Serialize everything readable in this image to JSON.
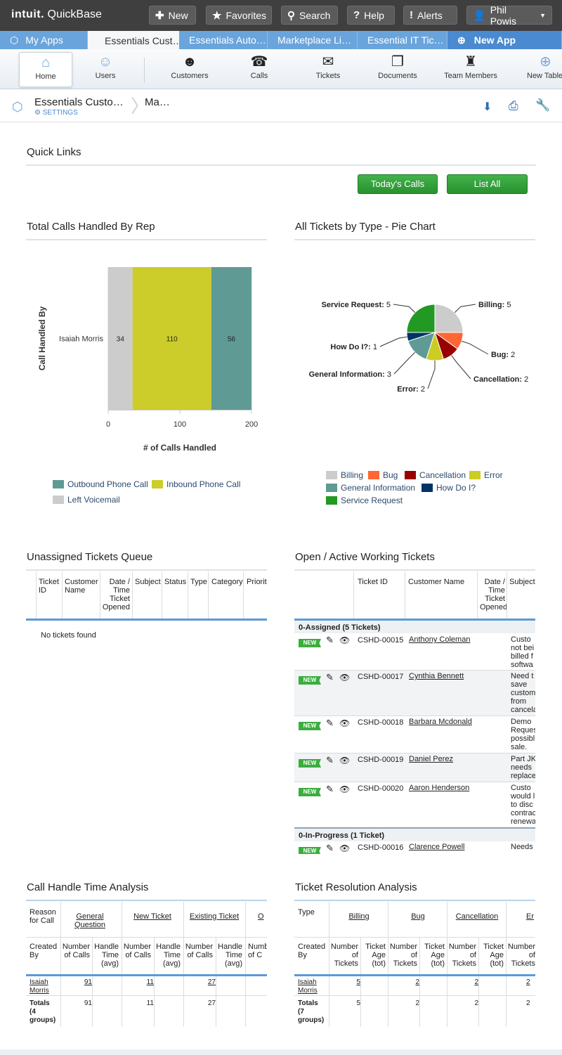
{
  "app": {
    "logo_brand": "intuit.",
    "logo_product": "QuickBase"
  },
  "topbar": {
    "new": "New",
    "favorites": "Favorites",
    "search": "Search",
    "help": "Help",
    "alerts": "Alerts",
    "user": "Phil Powis"
  },
  "tabs": [
    "My Apps",
    "Essentials Cust…",
    "Essentials Auto…",
    "Marketplace Li…",
    "Essential IT Tic…",
    "New App"
  ],
  "nav": [
    {
      "label": "Home",
      "icon": "home-icon"
    },
    {
      "label": "Users",
      "icon": "users-icon"
    },
    {
      "label": "Customers",
      "icon": "customers-icon"
    },
    {
      "label": "Calls",
      "icon": "calls-icon"
    },
    {
      "label": "Tickets",
      "icon": "tickets-icon"
    },
    {
      "label": "Documents",
      "icon": "documents-icon"
    },
    {
      "label": "Team Members",
      "icon": "team-members-icon"
    },
    {
      "label": "New Table",
      "icon": "new-table-icon"
    }
  ],
  "crumb": {
    "app": "Essentials Custo…",
    "settings": "SETTINGS",
    "page": "Ma…"
  },
  "quick_links": {
    "title": "Quick Links",
    "todays_calls": "Today's Calls",
    "list_all": "List All"
  },
  "calls_by_rep": {
    "title": "Total Calls Handled By Rep"
  },
  "tickets_pie": {
    "title": "All Tickets by Type - Pie Chart"
  },
  "unassigned": {
    "title": "Unassigned Tickets Queue",
    "columns": [
      "Ticket ID",
      "Customer Name",
      "Date / Time Ticket Opened",
      "Subject",
      "Status",
      "Type",
      "Category",
      "Priorit"
    ],
    "empty": "No tickets found"
  },
  "open_tickets": {
    "title": "Open / Active Working Tickets",
    "columns": [
      "Ticket ID",
      "Customer Name",
      "Date / Time Ticket Opened",
      "Subject"
    ],
    "groups": [
      {
        "label": "0-Assigned  (5 Tickets)",
        "rows": [
          {
            "badge": "NEW",
            "id": "CSHD-00015",
            "customer": "Anthony Coleman",
            "subject": "Custo not bei billed f softwa"
          },
          {
            "badge": "NEW",
            "id": "CSHD-00017",
            "customer": "Cynthia Bennett",
            "subject": "Need t save custom from cancela"
          },
          {
            "badge": "NEW",
            "id": "CSHD-00018",
            "customer": "Barbara Mcdonald",
            "subject": "Demo Reques possibl sale."
          },
          {
            "badge": "NEW",
            "id": "CSHD-00019",
            "customer": "Daniel Perez",
            "subject": "Part JK needs replace"
          },
          {
            "badge": "NEW",
            "id": "CSHD-00020",
            "customer": "Aaron Henderson",
            "subject": "Custo would l to disc contrac renewa"
          }
        ]
      },
      {
        "label": "0-In-Progress  (1 Ticket)",
        "rows": [
          {
            "badge": "NEW",
            "id": "CSHD-00016",
            "customer": "Clarence Powell",
            "subject": "Needs"
          }
        ]
      }
    ]
  },
  "handle_time": {
    "title": "Call Handle Time Analysis",
    "reason_label": "Reason for Call",
    "groups": [
      "General Question",
      "New Ticket",
      "Existing Ticket",
      "O"
    ],
    "created_by": "Created By",
    "sub_cols": [
      "Number of Calls",
      "Handle Time (avg)"
    ],
    "sub_last": "Numb of C",
    "rows": [
      {
        "name": "Isaiah Morris",
        "values": [
          "91",
          "11",
          "27"
        ]
      }
    ],
    "totals_label": "Totals (4 groups)",
    "totals": [
      "91",
      "11",
      "27"
    ]
  },
  "resolution": {
    "title": "Ticket Resolution Analysis",
    "type_label": "Type",
    "groups": [
      "Billing",
      "Bug",
      "Cancellation",
      "Er"
    ],
    "created_by": "Created By",
    "sub_cols": [
      "Number of Tickets",
      "Ticket Age (tot)"
    ],
    "sub_last": "Number of Tickets",
    "rows": [
      {
        "name": "Isaiah Morris",
        "values": [
          "5",
          "2",
          "2",
          "2"
        ]
      }
    ],
    "totals_label": "Totals (7 groups)",
    "totals": [
      "5",
      "2",
      "2",
      "2"
    ]
  },
  "chart_data": [
    {
      "type": "bar",
      "orientation": "horizontal",
      "stacked": true,
      "categories": [
        "Isaiah Morris"
      ],
      "series": [
        {
          "name": "Left Voicemail",
          "values": [
            34
          ],
          "color": "#cccccc"
        },
        {
          "name": "Inbound Phone Call",
          "values": [
            110
          ],
          "color": "#cccc2a"
        },
        {
          "name": "Outbound Phone Call",
          "values": [
            56
          ],
          "color": "#5f9a95"
        }
      ],
      "xlabel": "# of Calls Handled",
      "ylabel": "Call Handled By",
      "xlim": [
        0,
        200
      ],
      "xticks": [
        "0",
        "100",
        "200"
      ],
      "legend": "bottom",
      "legend_order": [
        "Outbound Phone Call",
        "Inbound Phone Call",
        "Left Voicemail"
      ]
    },
    {
      "type": "pie",
      "slices": [
        {
          "label": "Billing",
          "value": 5,
          "color": "#cccccc"
        },
        {
          "label": "Bug",
          "value": 2,
          "color": "#ff6633"
        },
        {
          "label": "Cancellation",
          "value": 2,
          "color": "#990000"
        },
        {
          "label": "Error",
          "value": 2,
          "color": "#cccc22"
        },
        {
          "label": "General Information",
          "value": 3,
          "color": "#5f9a95"
        },
        {
          "label": "How Do I?",
          "value": 1,
          "color": "#003366"
        },
        {
          "label": "Service Request",
          "value": 5,
          "color": "#229922"
        }
      ],
      "legend": "bottom"
    }
  ]
}
